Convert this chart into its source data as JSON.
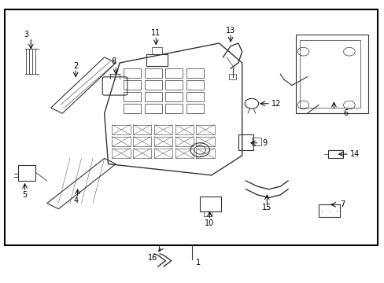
{
  "bg_color": "#ffffff",
  "border_color": "#000000",
  "line_color": "#333333",
  "fig_width": 4.89,
  "fig_height": 3.6,
  "dpi": 100
}
